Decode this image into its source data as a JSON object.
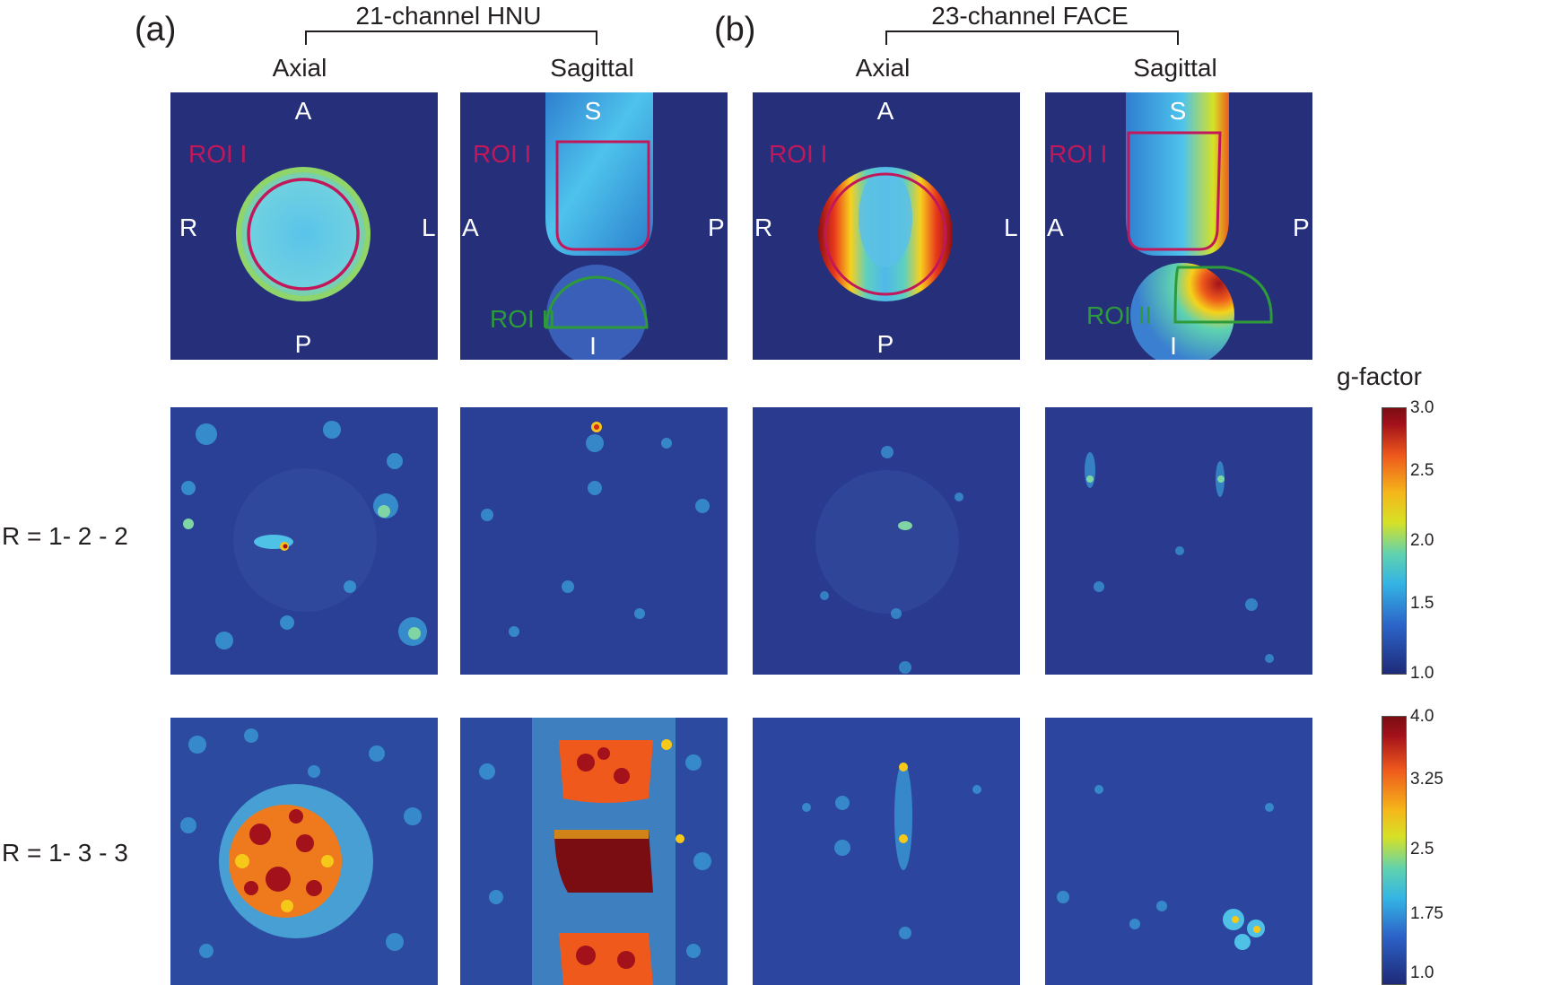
{
  "panel_letters": [
    "(a)",
    "(b)"
  ],
  "groups": [
    "21-channel HNU",
    "23-channel FACE"
  ],
  "columns": [
    "Axial",
    "Sagittal",
    "Axial",
    "Sagittal"
  ],
  "row_labels": [
    "R = 1- 2 - 2",
    "R = 1- 3 - 3"
  ],
  "orientation_labels": {
    "axial": {
      "top": "A",
      "bottom": "P",
      "left": "R",
      "right": "L"
    },
    "sagittal": {
      "top": "S",
      "bottom": "I",
      "left": "A",
      "right": "P"
    }
  },
  "roi_labels": {
    "roi1": "ROI I",
    "roi2": "ROI II"
  },
  "colorbar": {
    "title": "g-factor",
    "bar1_ticks": [
      "3.0",
      "2.5",
      "2.0",
      "1.5",
      "1.0"
    ],
    "bar2_ticks": [
      "4.0",
      "3.25",
      "2.5",
      "1.75",
      "1.0"
    ]
  },
  "colors": {
    "roi1": "#c2185b",
    "roi2": "#2e9b3a",
    "background": "#26307a"
  }
}
